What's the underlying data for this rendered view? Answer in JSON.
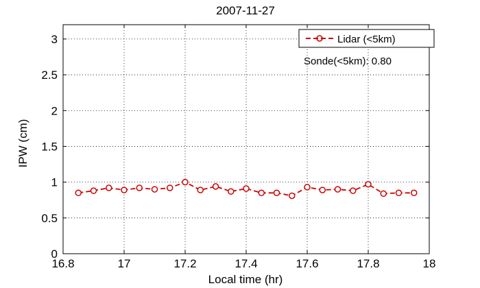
{
  "chart_data": {
    "type": "line",
    "title": "2007-11-27",
    "xlabel": "Local time (hr)",
    "ylabel": "IPW (cm)",
    "xlim": [
      16.8,
      18
    ],
    "ylim": [
      0,
      3.2
    ],
    "xticks": [
      16.8,
      17,
      17.2,
      17.4,
      17.6,
      17.8,
      18
    ],
    "xtick_labels": [
      "16.8",
      "17",
      "17.2",
      "17.4",
      "17.6",
      "17.8",
      "18"
    ],
    "yticks": [
      0,
      0.5,
      1,
      1.5,
      2,
      2.5,
      3
    ],
    "ytick_labels": [
      "0",
      "0.5",
      "1",
      "1.5",
      "2",
      "2.5",
      "3"
    ],
    "grid": true,
    "legend_position": "top-right",
    "series": [
      {
        "name": "Lidar (<5km)",
        "color": "#cc0000",
        "line_style": "dashed",
        "marker": "circle",
        "x": [
          16.85,
          16.9,
          16.95,
          17.0,
          17.05,
          17.1,
          17.15,
          17.2,
          17.25,
          17.3,
          17.35,
          17.4,
          17.45,
          17.5,
          17.55,
          17.6,
          17.65,
          17.7,
          17.75,
          17.8,
          17.85,
          17.9,
          17.95
        ],
        "y": [
          0.85,
          0.88,
          0.92,
          0.89,
          0.92,
          0.9,
          0.92,
          1.0,
          0.89,
          0.94,
          0.87,
          0.91,
          0.85,
          0.85,
          0.81,
          0.93,
          0.89,
          0.9,
          0.88,
          0.97,
          0.84,
          0.85,
          0.85
        ]
      }
    ],
    "annotations": [
      {
        "text": "Sonde(<5km): 0.80"
      }
    ]
  }
}
